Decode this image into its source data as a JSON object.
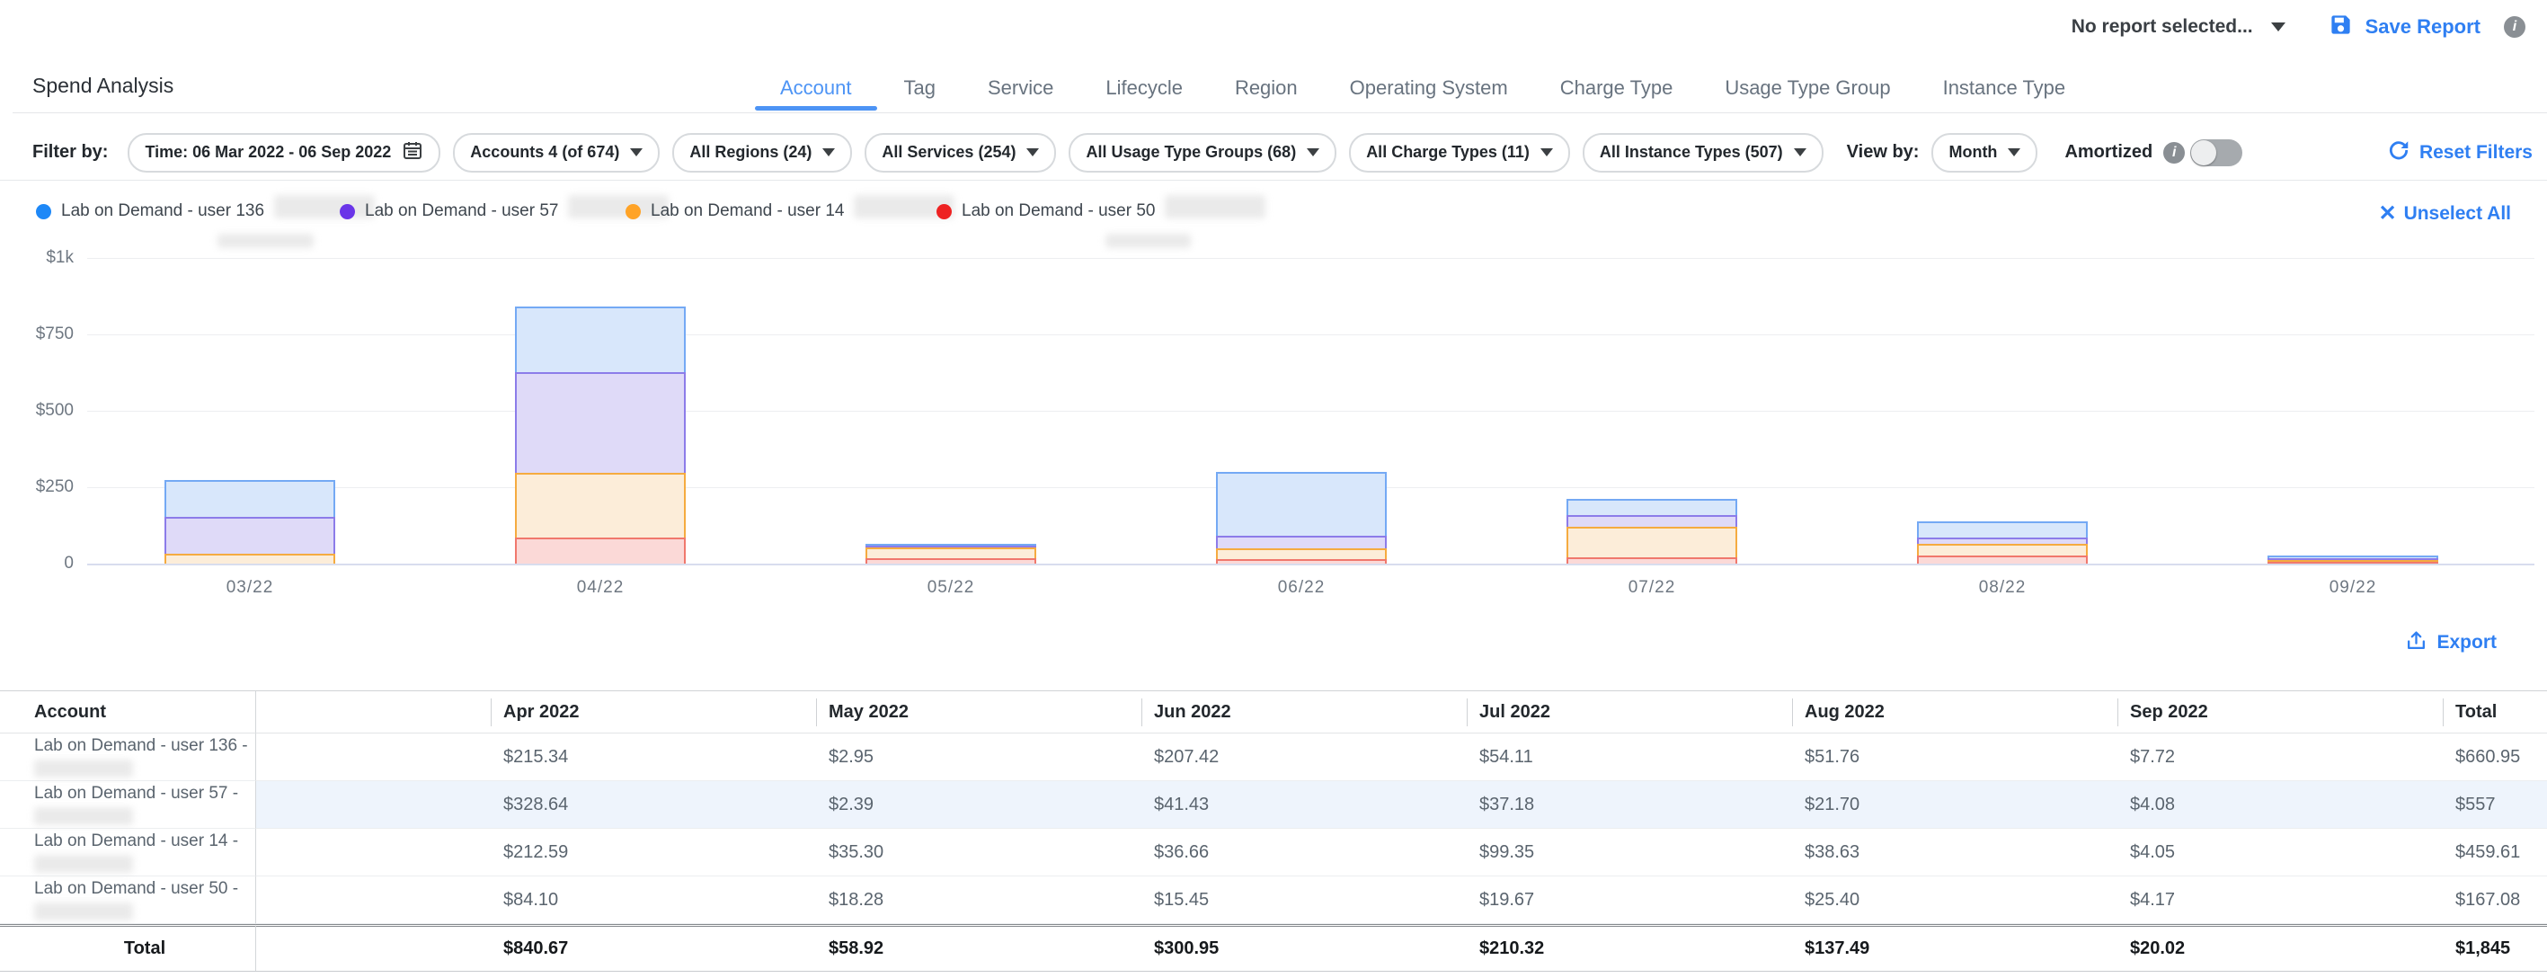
{
  "top_bar": {
    "report_selector": "No report selected...",
    "save_report": "Save Report"
  },
  "page": {
    "title": "Spend Analysis"
  },
  "tabs": [
    {
      "label": "Account",
      "active": true
    },
    {
      "label": "Tag",
      "active": false
    },
    {
      "label": "Service",
      "active": false
    },
    {
      "label": "Lifecycle",
      "active": false
    },
    {
      "label": "Region",
      "active": false
    },
    {
      "label": "Operating System",
      "active": false
    },
    {
      "label": "Charge Type",
      "active": false
    },
    {
      "label": "Usage Type Group",
      "active": false
    },
    {
      "label": "Instance Type",
      "active": false
    }
  ],
  "filters": {
    "label": "Filter by:",
    "time": "Time: 06 Mar 2022 - 06 Sep 2022",
    "dropdowns": [
      "Accounts 4 (of 674)",
      "All Regions (24)",
      "All Services (254)",
      "All Usage Type Groups (68)",
      "All Charge Types (11)",
      "All Instance Types (507)"
    ],
    "view_by_label": "View by:",
    "view_by_value": "Month",
    "amortized_label": "Amortized",
    "amortized_on": false,
    "reset_label": "Reset Filters"
  },
  "legend": {
    "unselect_all": "Unselect All",
    "items": [
      {
        "label": "Lab on Demand - user 136",
        "color": "#1E88F7"
      },
      {
        "label": "Lab on Demand - user 57",
        "color": "#6A35E8"
      },
      {
        "label": "Lab on Demand - user 14",
        "color": "#FFA326"
      },
      {
        "label": "Lab on Demand - user 50",
        "color": "#EE2222"
      }
    ]
  },
  "chart_data": {
    "type": "bar",
    "stacked": true,
    "title": "",
    "xlabel": "",
    "ylabel": "",
    "categories": [
      "03/22",
      "04/22",
      "05/22",
      "06/22",
      "07/22",
      "08/22",
      "09/22"
    ],
    "series": [
      {
        "name": "Lab on Demand - user 50",
        "border": "#F0786D",
        "fill": "#FBD9D7",
        "values": [
          0.01,
          84.1,
          18.28,
          15.45,
          19.67,
          25.4,
          4.17
        ]
      },
      {
        "name": "Lab on Demand - user 14",
        "border": "#F5AB40",
        "fill": "#FCEDD9",
        "values": [
          33.03,
          212.59,
          35.3,
          36.66,
          99.35,
          38.63,
          4.05
        ]
      },
      {
        "name": "Lab on Demand - user 57",
        "border": "#8C7CE9",
        "fill": "#DFDAF8",
        "values": [
          121.58,
          328.64,
          2.39,
          41.43,
          37.18,
          21.7,
          4.08
        ]
      },
      {
        "name": "Lab on Demand - user 136",
        "border": "#74A9F4",
        "fill": "#D8E7FB",
        "values": [
          121.65,
          215.34,
          2.95,
          207.42,
          54.11,
          51.76,
          7.72
        ]
      }
    ],
    "y_ticks": [
      "$1k",
      "$750",
      "$500",
      "$250",
      "0"
    ],
    "ylim": [
      0,
      1000
    ],
    "grid": true,
    "legend_position": "top"
  },
  "export_label": "Export",
  "table": {
    "columns": [
      "Account",
      "Apr 2022",
      "May 2022",
      "Jun 2022",
      "Jul 2022",
      "Aug 2022",
      "Sep 2022",
      "Total"
    ],
    "rows": [
      {
        "account": "Lab on Demand - user 136 -",
        "highlighted": false,
        "values": [
          "$215.34",
          "$2.95",
          "$207.42",
          "$54.11",
          "$51.76",
          "$7.72",
          "$660.95"
        ]
      },
      {
        "account": "Lab on Demand - user 57 -",
        "highlighted": true,
        "values": [
          "$328.64",
          "$2.39",
          "$41.43",
          "$37.18",
          "$21.70",
          "$4.08",
          "$557"
        ]
      },
      {
        "account": "Lab on Demand - user 14 -",
        "highlighted": false,
        "values": [
          "$212.59",
          "$35.30",
          "$36.66",
          "$99.35",
          "$38.63",
          "$4.05",
          "$459.61"
        ]
      },
      {
        "account": "Lab on Demand - user 50 -",
        "highlighted": false,
        "values": [
          "$84.10",
          "$18.28",
          "$15.45",
          "$19.67",
          "$25.40",
          "$4.17",
          "$167.08"
        ]
      }
    ],
    "total_row": {
      "label": "Total",
      "values": [
        "$840.67",
        "$58.92",
        "$300.95",
        "$210.32",
        "$137.49",
        "$20.02",
        "$1,845"
      ]
    }
  },
  "colors": {
    "accent": "#2F7FF2",
    "tab_active": "#4D94F5",
    "row_highlight": "#EEF4FC"
  }
}
